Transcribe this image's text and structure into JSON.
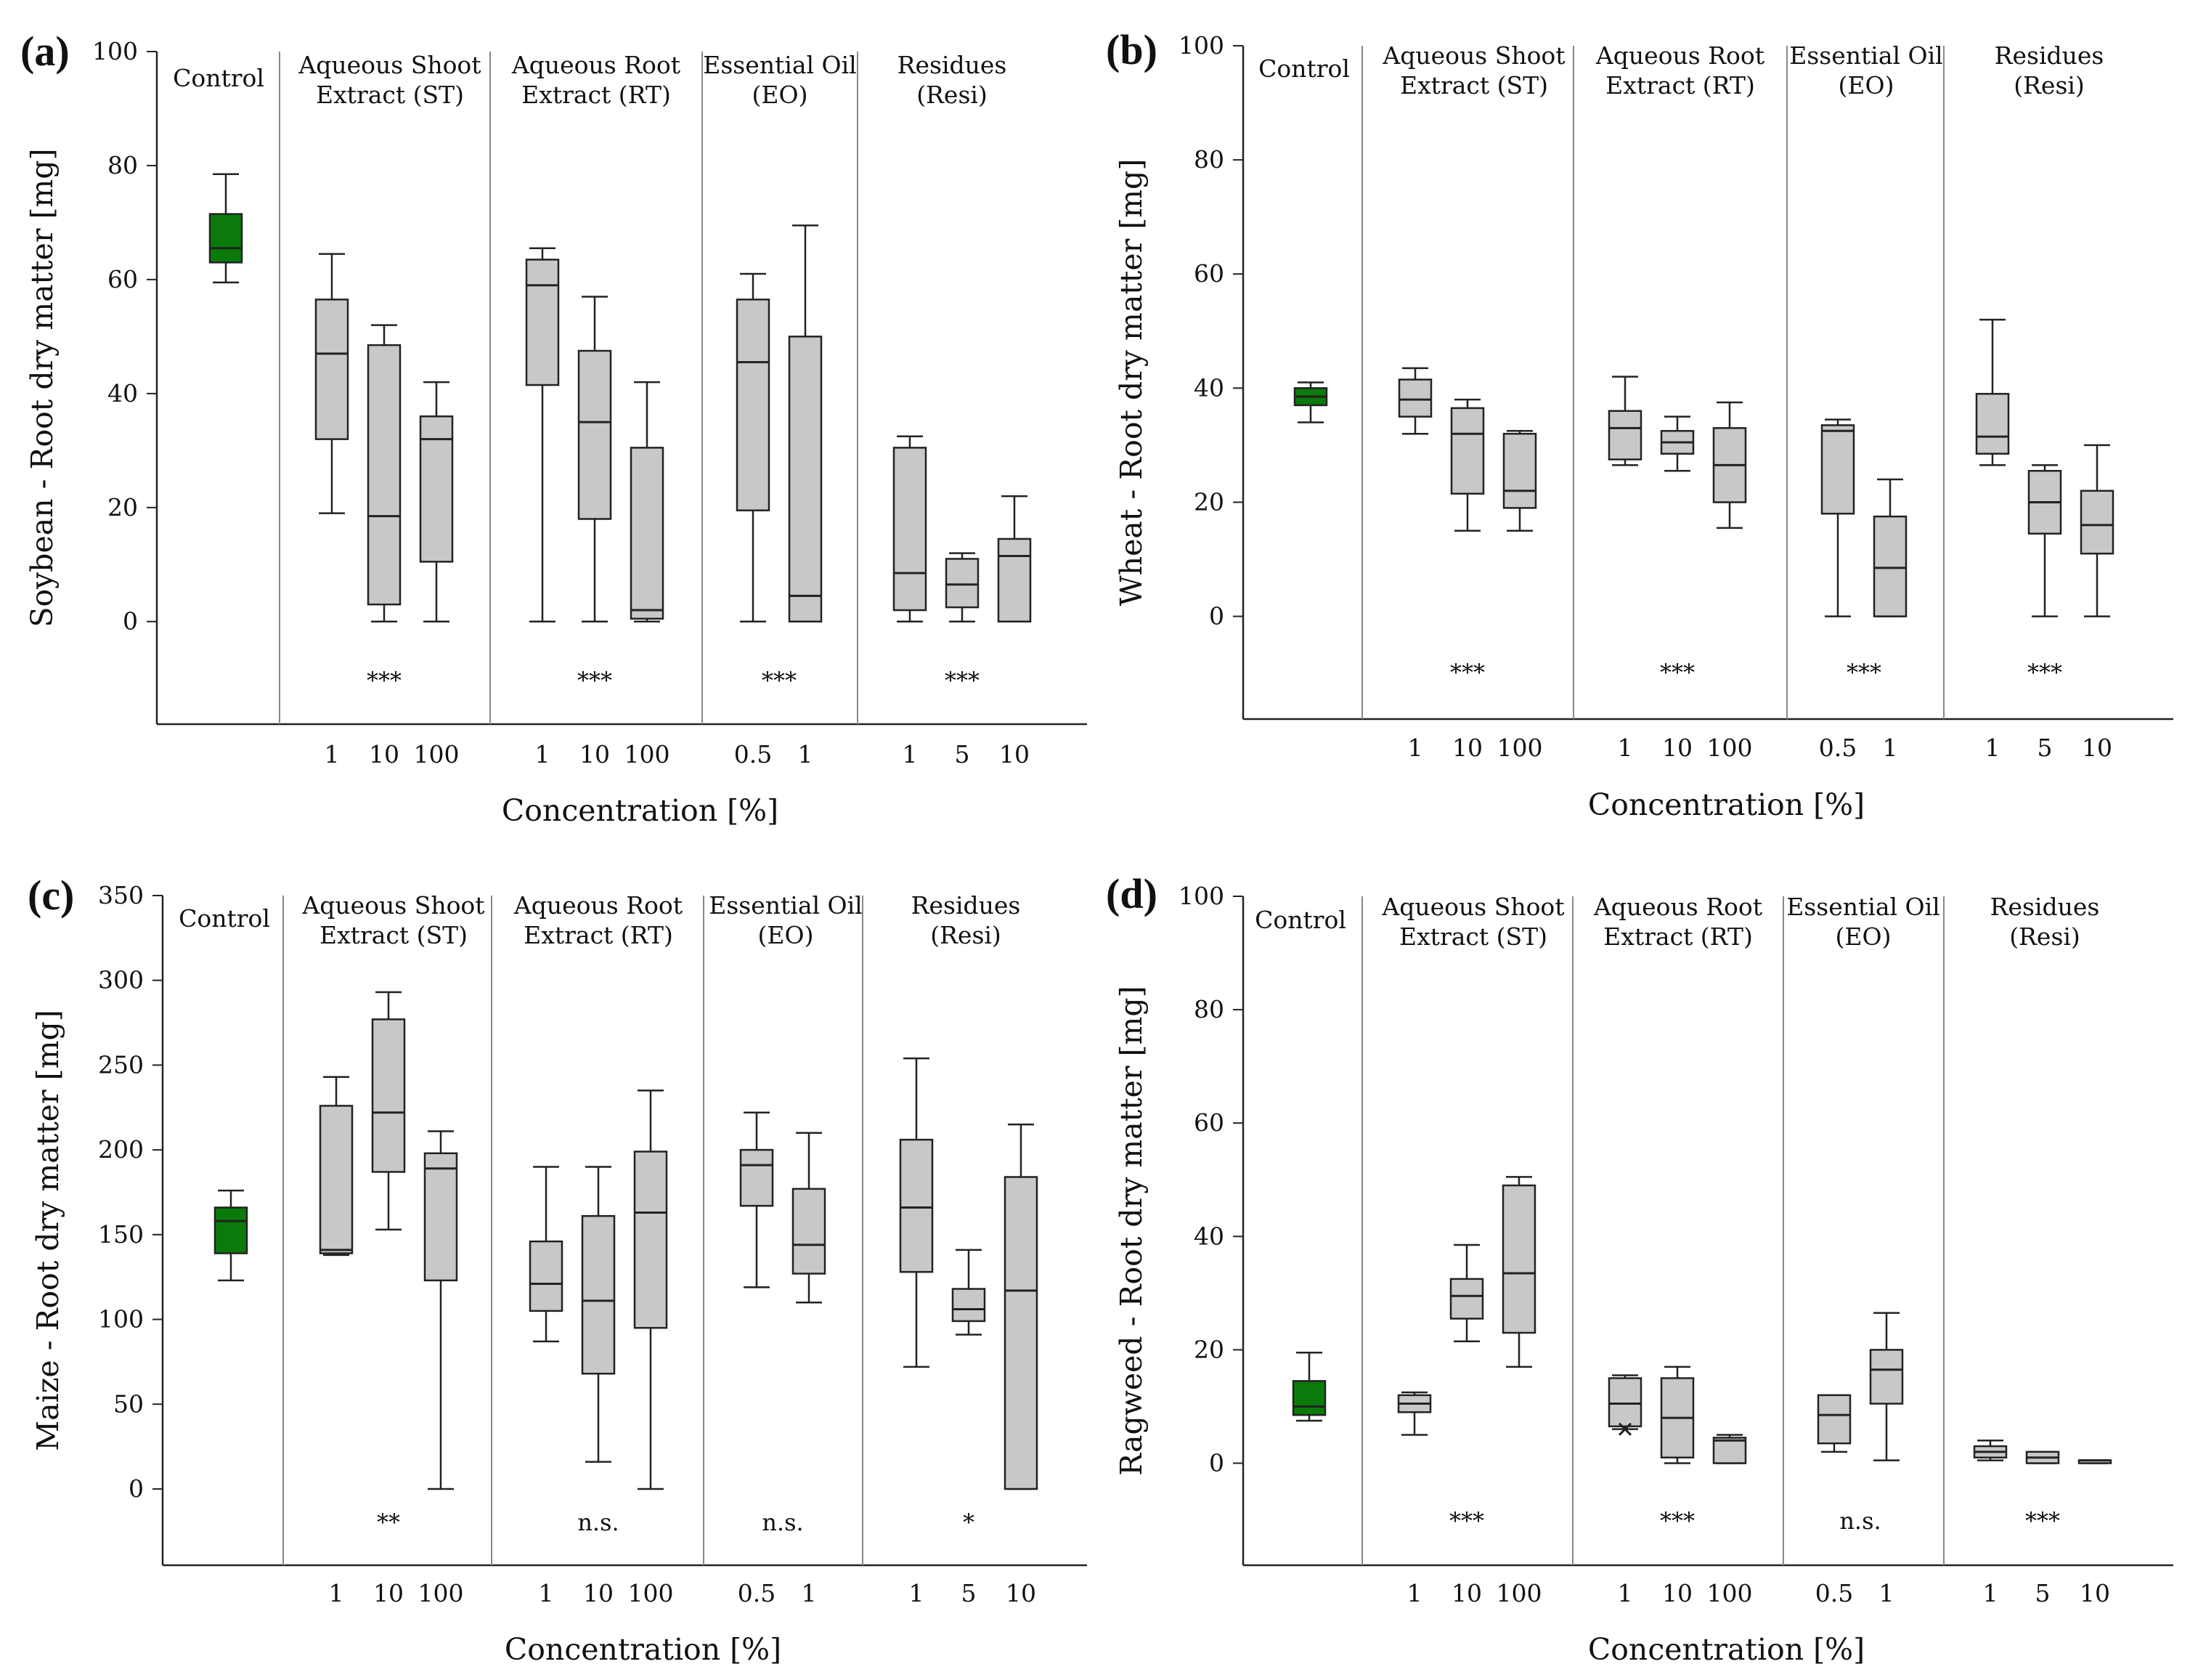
{
  "chart_data": [
    {
      "type": "box",
      "panel_label": "(a)",
      "ylabel": "Soybean - Root dry matter [mg]",
      "xlabel": "Concentration [%]",
      "ylim": [
        -18,
        100
      ],
      "yticks": [
        "0",
        "20",
        "40",
        "60",
        "80",
        "100"
      ],
      "groups": [
        {
          "title": [
            "Control"
          ],
          "sig": "",
          "boxes": [
            {
              "x": "",
              "min": 59.5,
              "q1": 63,
              "median": 65.5,
              "q3": 71.5,
              "max": 78.5,
              "color": "#0a7a0a"
            }
          ]
        },
        {
          "title": [
            "Aqueous Shoot",
            "Extract (ST)"
          ],
          "sig": "***",
          "boxes": [
            {
              "x": "1",
              "min": 19,
              "q1": 32,
              "median": 47,
              "q3": 56.5,
              "max": 64.5
            },
            {
              "x": "10",
              "min": 0,
              "q1": 3,
              "median": 18.5,
              "q3": 48.5,
              "max": 52
            },
            {
              "x": "100",
              "min": 0,
              "q1": 10.5,
              "median": 32,
              "q3": 36,
              "max": 42
            }
          ]
        },
        {
          "title": [
            "Aqueous Root",
            "Extract (RT)"
          ],
          "sig": "***",
          "boxes": [
            {
              "x": "1",
              "min": 0,
              "q1": 41.5,
              "median": 59,
              "q3": 63.5,
              "max": 65.5
            },
            {
              "x": "10",
              "min": 0,
              "q1": 18,
              "median": 35,
              "q3": 47.5,
              "max": 57
            },
            {
              "x": "100",
              "min": 0,
              "q1": 0.5,
              "median": 2,
              "q3": 30.5,
              "max": 42
            }
          ]
        },
        {
          "title": [
            "Essential Oil",
            "(EO)"
          ],
          "sig": "***",
          "boxes": [
            {
              "x": "0.5",
              "min": 0,
              "q1": 19.5,
              "median": 45.5,
              "q3": 56.5,
              "max": 61
            },
            {
              "x": "1",
              "min": 0,
              "q1": 0,
              "median": 4.5,
              "q3": 50,
              "max": 69.5
            }
          ]
        },
        {
          "title": [
            "Residues",
            "(Resi)"
          ],
          "sig": "***",
          "boxes": [
            {
              "x": "1",
              "min": 0,
              "q1": 2,
              "median": 8.5,
              "q3": 30.5,
              "max": 32.5
            },
            {
              "x": "5",
              "min": 0,
              "q1": 2.5,
              "median": 6.5,
              "q3": 11,
              "max": 12
            },
            {
              "x": "10",
              "min": 0,
              "q1": 0,
              "median": 11.5,
              "q3": 14.5,
              "max": 22
            }
          ]
        }
      ]
    },
    {
      "type": "box",
      "panel_label": "(b)",
      "ylabel": "Wheat - Root dry matter [mg]",
      "xlabel": "Concentration [%]",
      "ylim": [
        -18,
        100
      ],
      "yticks": [
        "0",
        "20",
        "40",
        "60",
        "80",
        "100"
      ],
      "groups": [
        {
          "title": [
            "Control"
          ],
          "sig": "",
          "boxes": [
            {
              "x": "",
              "min": 34,
              "q1": 37,
              "median": 38.5,
              "q3": 40,
              "max": 41,
              "color": "#0a7a0a"
            }
          ]
        },
        {
          "title": [
            "Aqueous Shoot",
            "Extract (ST)"
          ],
          "sig": "***",
          "boxes": [
            {
              "x": "1",
              "min": 32,
              "q1": 35,
              "median": 38,
              "q3": 41.5,
              "max": 43.5
            },
            {
              "x": "10",
              "min": 15,
              "q1": 21.5,
              "median": 32,
              "q3": 36.5,
              "max": 38
            },
            {
              "x": "100",
              "min": 15,
              "q1": 19,
              "median": 22,
              "q3": 32,
              "max": 32.5
            }
          ]
        },
        {
          "title": [
            "Aqueous Root",
            "Extract (RT)"
          ],
          "sig": "***",
          "boxes": [
            {
              "x": "1",
              "min": 26.5,
              "q1": 27.5,
              "median": 33,
              "q3": 36,
              "max": 42
            },
            {
              "x": "10",
              "min": 25.5,
              "q1": 28.5,
              "median": 30.5,
              "q3": 32.5,
              "max": 35
            },
            {
              "x": "100",
              "min": 15.5,
              "q1": 20,
              "median": 26.5,
              "q3": 33,
              "max": 37.5
            }
          ]
        },
        {
          "title": [
            "Essential Oil",
            "(EO)"
          ],
          "sig": "***",
          "boxes": [
            {
              "x": "0.5",
              "min": 0,
              "q1": 18,
              "median": 32.5,
              "q3": 33.5,
              "max": 34.5
            },
            {
              "x": "1",
              "min": 0,
              "q1": 0,
              "median": 8.5,
              "q3": 17.5,
              "max": 24
            }
          ]
        },
        {
          "title": [
            "Residues",
            "(Resi)"
          ],
          "sig": "***",
          "boxes": [
            {
              "x": "1",
              "min": 26.5,
              "q1": 28.5,
              "median": 31.5,
              "q3": 39,
              "max": 52
            },
            {
              "x": "5",
              "min": 0,
              "q1": 14.5,
              "median": 20,
              "q3": 25.5,
              "max": 26.5
            },
            {
              "x": "10",
              "min": 0,
              "q1": 11,
              "median": 16,
              "q3": 22,
              "max": 30
            }
          ]
        }
      ]
    },
    {
      "type": "box",
      "panel_label": "(c)",
      "ylabel": "Maize - Root dry matter [mg]",
      "xlabel": "Concentration [%]",
      "ylim": [
        -45,
        350
      ],
      "yticks": [
        "0",
        "50",
        "100",
        "150",
        "200",
        "250",
        "300",
        "350"
      ],
      "groups": [
        {
          "title": [
            "Control"
          ],
          "sig": "",
          "boxes": [
            {
              "x": "",
              "min": 123,
              "q1": 139,
              "median": 158,
              "q3": 166,
              "max": 176,
              "color": "#0a7a0a"
            }
          ]
        },
        {
          "title": [
            "Aqueous Shoot",
            "Extract (ST)"
          ],
          "sig": "**",
          "boxes": [
            {
              "x": "1",
              "min": 138,
              "q1": 139,
              "median": 141,
              "q3": 226,
              "max": 243
            },
            {
              "x": "10",
              "min": 153,
              "q1": 187,
              "median": 222,
              "q3": 277,
              "max": 293
            },
            {
              "x": "100",
              "min": 0,
              "q1": 123,
              "median": 189,
              "q3": 198,
              "max": 211
            }
          ]
        },
        {
          "title": [
            "Aqueous Root",
            "Extract (RT)"
          ],
          "sig": "n.s.",
          "boxes": [
            {
              "x": "1",
              "min": 87,
              "q1": 105,
              "median": 121,
              "q3": 146,
              "max": 190
            },
            {
              "x": "10",
              "min": 16,
              "q1": 68,
              "median": 111,
              "q3": 161,
              "max": 190
            },
            {
              "x": "100",
              "min": 0,
              "q1": 95,
              "median": 163,
              "q3": 199,
              "max": 235
            }
          ]
        },
        {
          "title": [
            "Essential Oil",
            "(EO)"
          ],
          "sig": "n.s.",
          "boxes": [
            {
              "x": "0.5",
              "min": 119,
              "q1": 167,
              "median": 191,
              "q3": 200,
              "max": 222
            },
            {
              "x": "1",
              "min": 110,
              "q1": 127,
              "median": 144,
              "q3": 177,
              "max": 210
            }
          ]
        },
        {
          "title": [
            "Residues",
            "(Resi)"
          ],
          "sig": "*",
          "boxes": [
            {
              "x": "1",
              "min": 72,
              "q1": 128,
              "median": 166,
              "q3": 206,
              "max": 254
            },
            {
              "x": "5",
              "min": 91,
              "q1": 99,
              "median": 106,
              "q3": 118,
              "max": 141
            },
            {
              "x": "10",
              "min": 0,
              "q1": 0,
              "median": 117,
              "q3": 184,
              "max": 215
            }
          ]
        }
      ]
    },
    {
      "type": "box",
      "panel_label": "(d)",
      "ylabel": "Ragweed - Root dry matter [mg]",
      "xlabel": "Concentration [%]",
      "ylim": [
        -18,
        100
      ],
      "yticks": [
        "0",
        "20",
        "40",
        "60",
        "80",
        "100"
      ],
      "groups": [
        {
          "title": [
            "Control"
          ],
          "sig": "",
          "boxes": [
            {
              "x": "",
              "min": 7.5,
              "q1": 8.5,
              "median": 10,
              "q3": 14.5,
              "max": 19.5,
              "color": "#0a7a0a"
            }
          ]
        },
        {
          "title": [
            "Aqueous Shoot",
            "Extract (ST)"
          ],
          "sig": "***",
          "boxes": [
            {
              "x": "1",
              "min": 5,
              "q1": 9,
              "median": 10.5,
              "q3": 12,
              "max": 12.5
            },
            {
              "x": "10",
              "min": 21.5,
              "q1": 25.5,
              "median": 29.5,
              "q3": 32.5,
              "max": 38.5
            },
            {
              "x": "100",
              "min": 17,
              "q1": 23,
              "median": 33.5,
              "q3": 49,
              "max": 50.5
            }
          ]
        },
        {
          "title": [
            "Aqueous Root",
            "Extract (RT)"
          ],
          "sig": "***",
          "boxes": [
            {
              "x": "1",
              "min": 6,
              "q1": 6.5,
              "median": 10.5,
              "q3": 15,
              "max": 15.5,
              "outlier": 6
            },
            {
              "x": "10",
              "min": 0,
              "q1": 1,
              "median": 8,
              "q3": 15,
              "max": 17
            },
            {
              "x": "100",
              "min": 0,
              "q1": 0,
              "median": 4,
              "q3": 4.5,
              "max": 5
            }
          ]
        },
        {
          "title": [
            "Essential Oil",
            "(EO)"
          ],
          "sig": "n.s.",
          "boxes": [
            {
              "x": "0.5",
              "min": 2,
              "q1": 3.5,
              "median": 8.5,
              "q3": 12,
              "max": 12
            },
            {
              "x": "1",
              "min": 0.5,
              "q1": 10.5,
              "median": 16.5,
              "q3": 20,
              "max": 26.5
            }
          ]
        },
        {
          "title": [
            "Residues",
            "(Resi)"
          ],
          "sig": "***",
          "boxes": [
            {
              "x": "1",
              "min": 0.5,
              "q1": 1,
              "median": 2,
              "q3": 3,
              "max": 4
            },
            {
              "x": "5",
              "min": 0,
              "q1": 0,
              "median": 1,
              "q3": 2,
              "max": 2
            },
            {
              "x": "10",
              "min": 0,
              "q1": 0,
              "median": 0.5,
              "q3": 0.5,
              "max": 0.5
            }
          ]
        }
      ]
    }
  ]
}
